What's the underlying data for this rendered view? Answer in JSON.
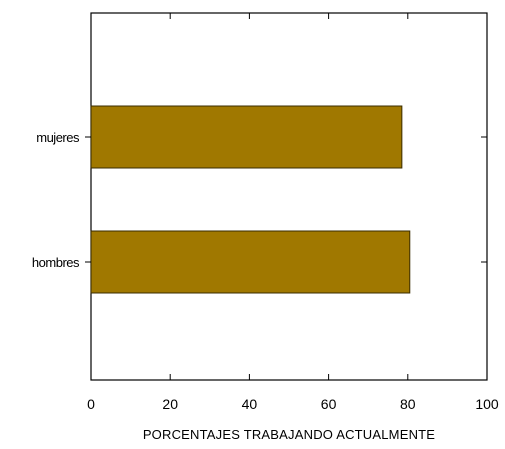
{
  "chart_data": {
    "type": "bar",
    "orientation": "horizontal",
    "categories": [
      "hombres",
      "mujeres"
    ],
    "values": [
      80.5,
      78.5
    ],
    "title": "",
    "xlabel": "PORCENTAJES TRABAJANDO ACTUALMENTE",
    "ylabel": "",
    "xlim": [
      0,
      100
    ],
    "xticks": [
      0,
      20,
      40,
      60,
      80,
      100
    ],
    "xtick_labels": [
      "0",
      "20",
      "40",
      "60",
      "80",
      "100"
    ],
    "grid": false,
    "legend": "none",
    "colors": {
      "bar_fill": "#a07800",
      "bar_stroke": "#3a2c00",
      "axis": "#000000",
      "background": "#ffffff"
    }
  }
}
